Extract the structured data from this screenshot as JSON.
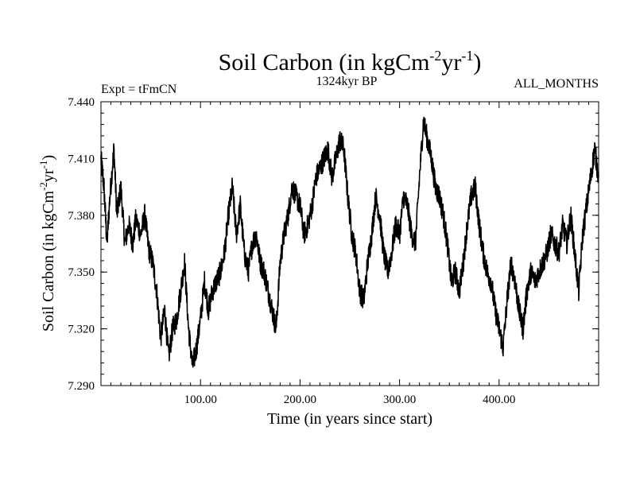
{
  "chart_data": {
    "type": "line",
    "title": {
      "base": "Soil Carbon (in kgCm",
      "sup1": "-2",
      "mid": "yr",
      "sup2": "-1",
      "end": ")"
    },
    "subtitle_left": "Expt = tFmCN",
    "subtitle_center": "1324kyr BP",
    "subtitle_right": "ALL_MONTHS",
    "xlabel": "Time (in years since start)",
    "ylabel": {
      "base": "Soil Carbon (in kgCm",
      "sup1": "-2",
      "mid": "yr",
      "sup2": "-1",
      "end": ")"
    },
    "xlim": [
      0,
      500
    ],
    "ylim": [
      7.29,
      7.44
    ],
    "xticks": [
      100,
      200,
      300,
      400
    ],
    "xtick_labels": [
      "100.00",
      "200.00",
      "300.00",
      "400.00"
    ],
    "yticks": [
      7.29,
      7.32,
      7.35,
      7.38,
      7.41,
      7.44
    ],
    "ytick_labels": [
      "7.290",
      "7.320",
      "7.350",
      "7.380",
      "7.410",
      "7.440"
    ],
    "series": [
      {
        "name": "Soil Carbon",
        "color": "#000000",
        "x": [
          0,
          3,
          6,
          9,
          13,
          16,
          20,
          24,
          28,
          32,
          35,
          40,
          44,
          48,
          52,
          56,
          60,
          64,
          68,
          72,
          76,
          80,
          84,
          88,
          92,
          96,
          100,
          104,
          108,
          112,
          116,
          120,
          124,
          128,
          132,
          136,
          140,
          144,
          148,
          152,
          156,
          160,
          164,
          168,
          172,
          176,
          180,
          184,
          188,
          192,
          196,
          200,
          204,
          208,
          212,
          216,
          220,
          224,
          228,
          232,
          236,
          240,
          244,
          248,
          252,
          256,
          260,
          264,
          268,
          272,
          276,
          280,
          284,
          288,
          292,
          296,
          300,
          304,
          308,
          312,
          316,
          320,
          324,
          328,
          332,
          336,
          340,
          344,
          348,
          352,
          356,
          360,
          364,
          368,
          372,
          376,
          380,
          384,
          388,
          392,
          396,
          400,
          404,
          408,
          412,
          416,
          420,
          424,
          428,
          432,
          436,
          440,
          444,
          448,
          452,
          456,
          460,
          464,
          468,
          472,
          476,
          480,
          484,
          488,
          492,
          496,
          500
        ],
        "values": [
          7.41,
          7.395,
          7.365,
          7.39,
          7.415,
          7.38,
          7.395,
          7.365,
          7.375,
          7.365,
          7.378,
          7.37,
          7.38,
          7.362,
          7.355,
          7.34,
          7.315,
          7.33,
          7.305,
          7.32,
          7.325,
          7.34,
          7.355,
          7.32,
          7.3,
          7.31,
          7.325,
          7.345,
          7.33,
          7.34,
          7.345,
          7.35,
          7.36,
          7.38,
          7.395,
          7.37,
          7.385,
          7.36,
          7.35,
          7.365,
          7.37,
          7.355,
          7.35,
          7.34,
          7.33,
          7.32,
          7.355,
          7.37,
          7.38,
          7.395,
          7.39,
          7.385,
          7.37,
          7.375,
          7.385,
          7.4,
          7.405,
          7.41,
          7.415,
          7.4,
          7.41,
          7.42,
          7.415,
          7.39,
          7.37,
          7.36,
          7.34,
          7.335,
          7.355,
          7.37,
          7.39,
          7.38,
          7.36,
          7.35,
          7.36,
          7.375,
          7.37,
          7.39,
          7.385,
          7.37,
          7.365,
          7.4,
          7.43,
          7.42,
          7.41,
          7.395,
          7.39,
          7.38,
          7.365,
          7.345,
          7.35,
          7.34,
          7.355,
          7.375,
          7.39,
          7.395,
          7.375,
          7.36,
          7.35,
          7.345,
          7.33,
          7.32,
          7.31,
          7.335,
          7.355,
          7.345,
          7.33,
          7.32,
          7.34,
          7.35,
          7.345,
          7.35,
          7.355,
          7.36,
          7.37,
          7.365,
          7.36,
          7.375,
          7.365,
          7.38,
          7.36,
          7.34,
          7.37,
          7.385,
          7.4,
          7.415,
          7.4
        ]
      }
    ]
  }
}
